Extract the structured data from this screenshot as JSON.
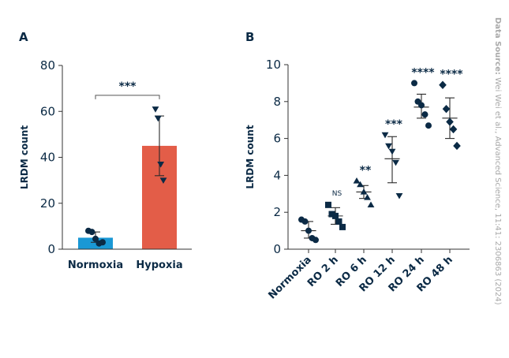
{
  "chart_data": [
    {
      "panel": "A",
      "type": "bar",
      "ylabel": "LRDM count",
      "ylim": [
        0,
        80
      ],
      "yticks": [
        0,
        20,
        40,
        60,
        80
      ],
      "categories": [
        "Normoxia",
        "Hypoxia"
      ],
      "means": [
        5,
        45
      ],
      "error_low": [
        3,
        32
      ],
      "error_high": [
        7.5,
        58
      ],
      "colors": [
        "#1a98d5",
        "#e35d48"
      ],
      "markers": [
        "circle",
        "triangle-down"
      ],
      "points": [
        [
          8,
          7.5,
          4.5,
          2.5,
          3
        ],
        [
          61,
          57,
          37,
          30
        ]
      ],
      "significance": {
        "label": "***",
        "between": [
          "Normoxia",
          "Hypoxia"
        ],
        "y": 67
      }
    },
    {
      "panel": "B",
      "type": "scatter",
      "ylabel": "LRDM count",
      "ylim": [
        0,
        10
      ],
      "yticks": [
        0,
        2,
        4,
        6,
        8,
        10
      ],
      "categories": [
        "Normoxia",
        "RO 2 h",
        "RO 6 h",
        "RO 12 h",
        "RO 24 h",
        "RO 48 h"
      ],
      "markers": [
        "circle",
        "square",
        "triangle-up",
        "triangle-down",
        "circle",
        "diamond"
      ],
      "means": [
        1,
        1.8,
        3.1,
        4.9,
        7.7,
        7.1
      ],
      "error_low": [
        0.6,
        1.35,
        2.75,
        3.6,
        7.1,
        6
      ],
      "error_high": [
        1.5,
        2.25,
        3.45,
        6.1,
        8.4,
        8.2
      ],
      "points": [
        [
          1.6,
          1.5,
          1.0,
          0.6,
          0.5
        ],
        [
          2.4,
          1.9,
          1.8,
          1.5,
          1.2
        ],
        [
          3.7,
          3.5,
          3.1,
          2.8,
          2.4
        ],
        [
          6.2,
          5.6,
          5.3,
          4.7,
          2.9
        ],
        [
          9.0,
          8.0,
          7.8,
          7.3,
          6.7
        ],
        [
          8.9,
          7.6,
          6.9,
          6.5,
          5.6
        ]
      ],
      "significance": [
        "",
        "NS",
        "**",
        "***",
        "****",
        "****"
      ]
    }
  ],
  "source": {
    "label": "Data Source:",
    "text": " Wei Wei et al., Advanced Science, 11:41: 2306863 (2024)"
  }
}
